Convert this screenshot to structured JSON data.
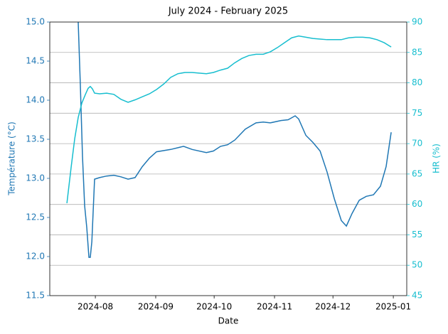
{
  "chart_data": {
    "type": "line",
    "title": "July 2024 - February 2025",
    "xlabel": "Date",
    "ylabel": "Température (°C)",
    "y2label": "HR (%)",
    "xlim": [
      19912.6,
      20095.9
    ],
    "xticks": [
      {
        "value": 19936,
        "label": "2024-08"
      },
      {
        "value": 19967,
        "label": "2024-09"
      },
      {
        "value": 19997,
        "label": "2024-10"
      },
      {
        "value": 20028,
        "label": "2024-11"
      },
      {
        "value": 20058,
        "label": "2024-12"
      },
      {
        "value": 20089,
        "label": "2025-01"
      }
    ],
    "ylim": [
      11.5,
      15.0
    ],
    "yticks": [
      {
        "value": 11.5,
        "label": "11.5"
      },
      {
        "value": 12,
        "label": "12.0"
      },
      {
        "value": 12.5,
        "label": "12.5"
      },
      {
        "value": 13,
        "label": "13.0"
      },
      {
        "value": 13.5,
        "label": "13.5"
      },
      {
        "value": 14,
        "label": "14.0"
      },
      {
        "value": 14.5,
        "label": "14.5"
      },
      {
        "value": 15,
        "label": "15.0"
      }
    ],
    "y2lim": [
      45,
      90
    ],
    "y2ticks": [
      45,
      50,
      55,
      60,
      65,
      70,
      75,
      80,
      85,
      90
    ],
    "grid": "y2",
    "series": [
      {
        "color": "#1f77b4",
        "x": [
          19927.2,
          19928.3,
          19929.4,
          19930.5,
          19931.6,
          19932.7,
          19933.4,
          19934.2,
          19935.6,
          19938.2,
          19941.8,
          19945.5,
          19949.1,
          19952.8,
          19956.4,
          19960.1,
          19963.8,
          19967.4,
          19974.7,
          19981.3,
          19985.7,
          19993.0,
          19996.6,
          20000.3,
          20003.9,
          20007.6,
          20013.0,
          20018.5,
          20022.2,
          20025.8,
          20031.3,
          20035.0,
          20038.6,
          20040.4,
          20044.1,
          20047.7,
          20051.4,
          20055.0,
          20058.7,
          20062.3,
          20064.9,
          20067.8,
          20071.5,
          20075.1,
          20078.8,
          20082.4,
          20085.3,
          20087.9
        ],
        "values": [
          15.0,
          14.19,
          13.28,
          12.65,
          12.37,
          11.99,
          11.99,
          12.19,
          12.99,
          13.01,
          13.03,
          13.04,
          13.02,
          12.99,
          13.01,
          13.15,
          13.26,
          13.34,
          13.37,
          13.41,
          13.37,
          13.33,
          13.35,
          13.41,
          13.43,
          13.49,
          13.63,
          13.71,
          13.72,
          13.71,
          13.74,
          13.75,
          13.8,
          13.76,
          13.55,
          13.46,
          13.35,
          13.08,
          12.74,
          12.46,
          12.39,
          12.55,
          12.72,
          12.77,
          12.79,
          12.9,
          13.15,
          13.59
        ]
      },
      {
        "color": "#17becf",
        "axis": "y2",
        "x": [
          19921.4,
          19923.6,
          19925.4,
          19927.2,
          19929.1,
          19930.9,
          19932.3,
          19933.4,
          19934.5,
          19935.6,
          19938.2,
          19941.8,
          19945.5,
          19949.1,
          19952.8,
          19956.4,
          19960.1,
          19963.8,
          19967.4,
          19971.1,
          19974.7,
          19978.4,
          19982.0,
          19985.7,
          19989.3,
          19993.0,
          19996.6,
          20000.3,
          20003.9,
          20007.6,
          20011.2,
          20014.9,
          20018.5,
          20022.2,
          20025.8,
          20029.5,
          20033.1,
          20036.8,
          20040.4,
          20044.1,
          20047.7,
          20051.4,
          20055.0,
          20058.7,
          20062.3,
          20066.0,
          20069.6,
          20073.3,
          20076.9,
          20080.6,
          20084.3,
          20087.9
        ],
        "values": [
          60.2,
          66.2,
          70.8,
          74.3,
          76.7,
          78.1,
          79.1,
          79.4,
          79.0,
          78.3,
          78.2,
          78.3,
          78.1,
          77.3,
          76.8,
          77.2,
          77.7,
          78.2,
          78.9,
          79.8,
          80.9,
          81.5,
          81.7,
          81.7,
          81.6,
          81.5,
          81.7,
          82.1,
          82.4,
          83.3,
          84.0,
          84.5,
          84.7,
          84.7,
          85.1,
          85.8,
          86.6,
          87.4,
          87.7,
          87.5,
          87.3,
          87.2,
          87.1,
          87.1,
          87.1,
          87.4,
          87.5,
          87.5,
          87.4,
          87.1,
          86.6,
          85.9
        ]
      }
    ]
  }
}
